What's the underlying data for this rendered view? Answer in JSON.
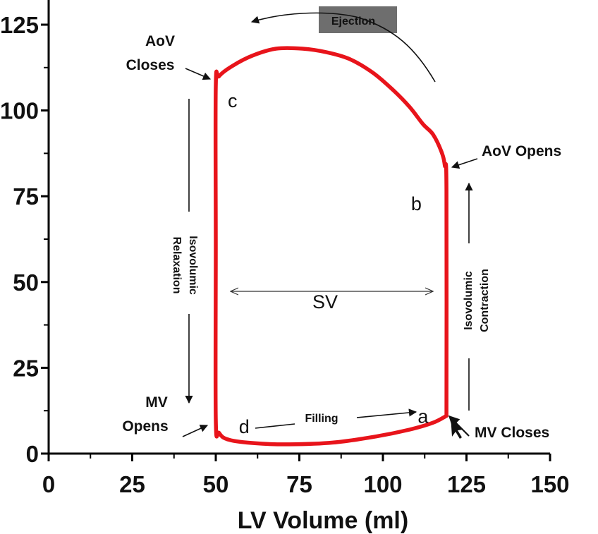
{
  "chart_data": {
    "type": "line",
    "title": "",
    "xlabel": "LV Volume (ml)",
    "ylabel": "",
    "xlim": [
      0,
      150
    ],
    "ylim": [
      0,
      130
    ],
    "x_ticks": [
      0,
      25,
      50,
      75,
      100,
      125,
      150
    ],
    "y_ticks": [
      0,
      25,
      50,
      75,
      100,
      125
    ],
    "series": [
      {
        "name": "PV loop",
        "color": "#e8141b",
        "x": [
          119,
          119,
          118.5,
          117.5,
          115,
          112,
          108,
          103,
          97,
          90,
          83,
          76,
          68,
          61,
          55,
          51,
          50,
          50,
          50,
          51,
          54,
          62,
          72,
          85,
          98,
          108,
          115,
          119
        ],
        "y": [
          11,
          77,
          84,
          88,
          93,
          96,
          101,
          106,
          111,
          115,
          117,
          118,
          118,
          116,
          113,
          110,
          107,
          60,
          10,
          6,
          4,
          3,
          2.7,
          3.2,
          5,
          7,
          9,
          11
        ]
      }
    ],
    "points": [
      {
        "label": "a",
        "x": 112,
        "y": 11
      },
      {
        "label": "b",
        "x": 110,
        "y": 73
      },
      {
        "label": "c",
        "x": 55,
        "y": 103
      },
      {
        "label": "d",
        "x": 58.5,
        "y": 8
      }
    ],
    "annotations": {
      "ejection": "Ejection",
      "aov_closes_line1": "AoV",
      "aov_closes_line2": "Closes",
      "aov_opens": "AoV Opens",
      "mv_opens_line1": "MV",
      "mv_opens_line2": "Opens",
      "mv_closes": "MV Closes",
      "filling": "Filling",
      "isovolumic_relaxation_line1": "Isovolumic",
      "isovolumic_relaxation_line2": "Relaxation",
      "isovolumic_contraction_line1": "Isovolumic",
      "isovolumic_contraction_line2": "Contraction",
      "sv": "SV"
    },
    "colors": {
      "loop": "#e8141b",
      "ejection_box": "#6e6e6e",
      "ejection_text": "#ffffff",
      "axis": "#000000"
    }
  }
}
